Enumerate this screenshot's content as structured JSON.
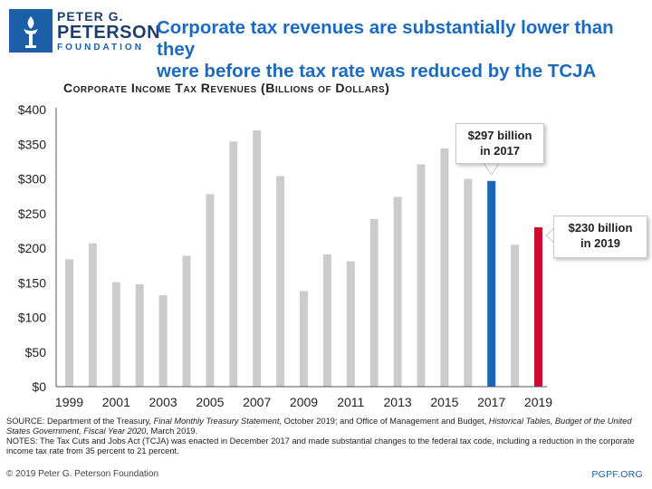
{
  "header": {
    "logo_line1": "PETER G.",
    "logo_line2": "PETERSON",
    "logo_line3": "FOUNDATION",
    "headline_line1": "Corporate tax revenues are substantially lower than they",
    "headline_line2": "were before the tax rate was reduced by the TCJA"
  },
  "colors": {
    "brand": "#1a5fa8",
    "headline": "#1a6ac0",
    "bar_default": "#cccccc",
    "bar_2017": "#1467b8",
    "bar_2019": "#c8102e"
  },
  "chart_data": {
    "type": "bar",
    "title": "Corporate Income Tax Revenues (Billions of Dollars)",
    "xlabel": "",
    "ylabel": "",
    "ylim": [
      0,
      400
    ],
    "yticks": [
      0,
      50,
      100,
      150,
      200,
      250,
      300,
      350,
      400
    ],
    "ytick_labels": [
      "$0",
      "$50",
      "$100",
      "$150",
      "$200",
      "$250",
      "$300",
      "$350",
      "$400"
    ],
    "categories": [
      "1999",
      "2000",
      "2001",
      "2002",
      "2003",
      "2004",
      "2005",
      "2006",
      "2007",
      "2008",
      "2009",
      "2010",
      "2011",
      "2012",
      "2013",
      "2014",
      "2015",
      "2016",
      "2017",
      "2018",
      "2019"
    ],
    "xtick_labels": [
      "1999",
      "2001",
      "2003",
      "2005",
      "2007",
      "2009",
      "2011",
      "2013",
      "2015",
      "2017",
      "2019"
    ],
    "values": [
      184,
      207,
      151,
      148,
      132,
      189,
      278,
      354,
      370,
      304,
      138,
      191,
      181,
      242,
      274,
      321,
      344,
      300,
      297,
      205,
      230
    ],
    "highlight": {
      "2017": "#1467b8",
      "2019": "#c8102e"
    },
    "grid": false,
    "legend": "none",
    "annotations": [
      {
        "year": "2017",
        "line1": "$297 billion",
        "line2": "in 2017"
      },
      {
        "year": "2019",
        "line1": "$230 billion",
        "line2": "in 2019"
      }
    ]
  },
  "footer": {
    "source_prefix": "SOURCE: Department of the Treasury, ",
    "source_title1": "Final Monthly Treasury Statement",
    "source_mid": ", October 2019; and Office of Management and Budget, ",
    "source_title2": "Historical Tables, Budget of the United States Government, Fiscal Year 2020",
    "source_suffix": ", March 2019.",
    "notes": "NOTES: The Tax Cuts and Jobs Act (TCJA) was enacted in December 2017 and made substantial changes to the federal tax code, including a reduction in the corporate income tax rate from 35 percent to 21 percent.",
    "copyright": "© 2019 Peter G. Peterson Foundation",
    "site": "PGPF.ORG"
  }
}
